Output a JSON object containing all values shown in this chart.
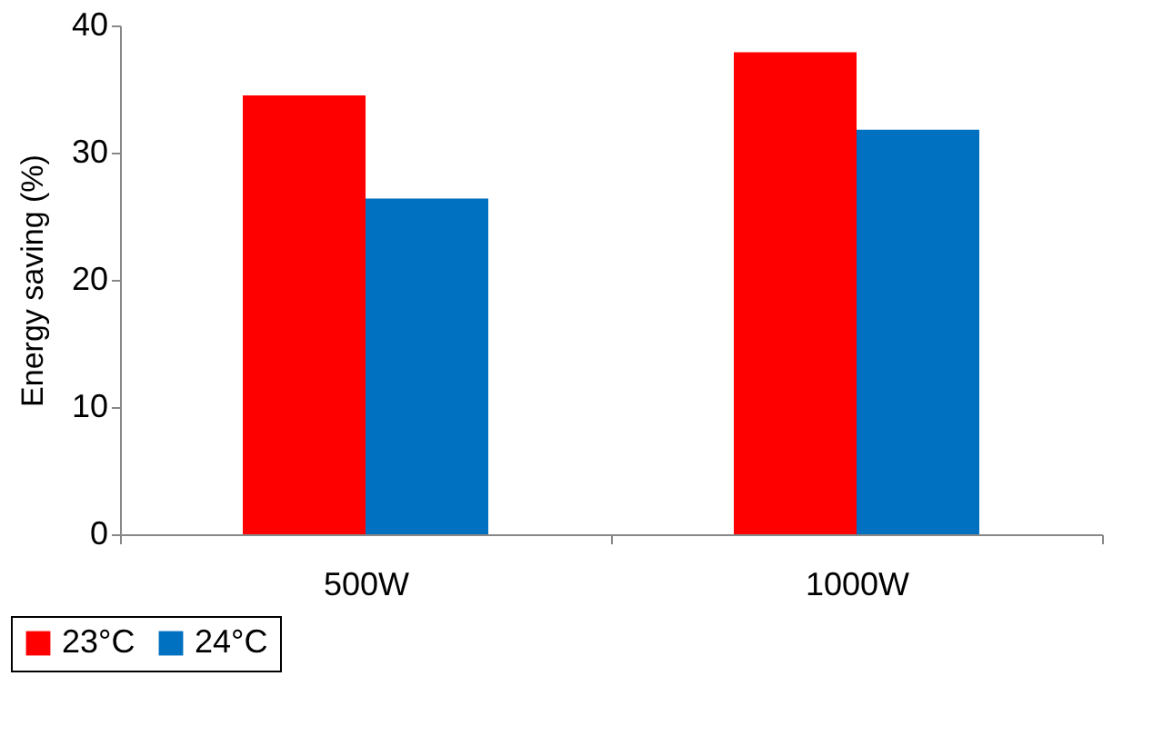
{
  "chart_data": {
    "type": "bar",
    "ylabel": "Energy saving (%)",
    "categories": [
      "500W",
      "1000W"
    ],
    "series": [
      {
        "name": "23°C",
        "color": "#ff0000",
        "values": [
          34.5,
          37.9
        ]
      },
      {
        "name": "24°C",
        "color": "#0070c0",
        "values": [
          26.4,
          31.8
        ]
      }
    ],
    "ylim": [
      0,
      40
    ],
    "yticks": [
      0,
      10,
      20,
      30,
      40
    ],
    "grid": false,
    "legend": "bottom left"
  }
}
